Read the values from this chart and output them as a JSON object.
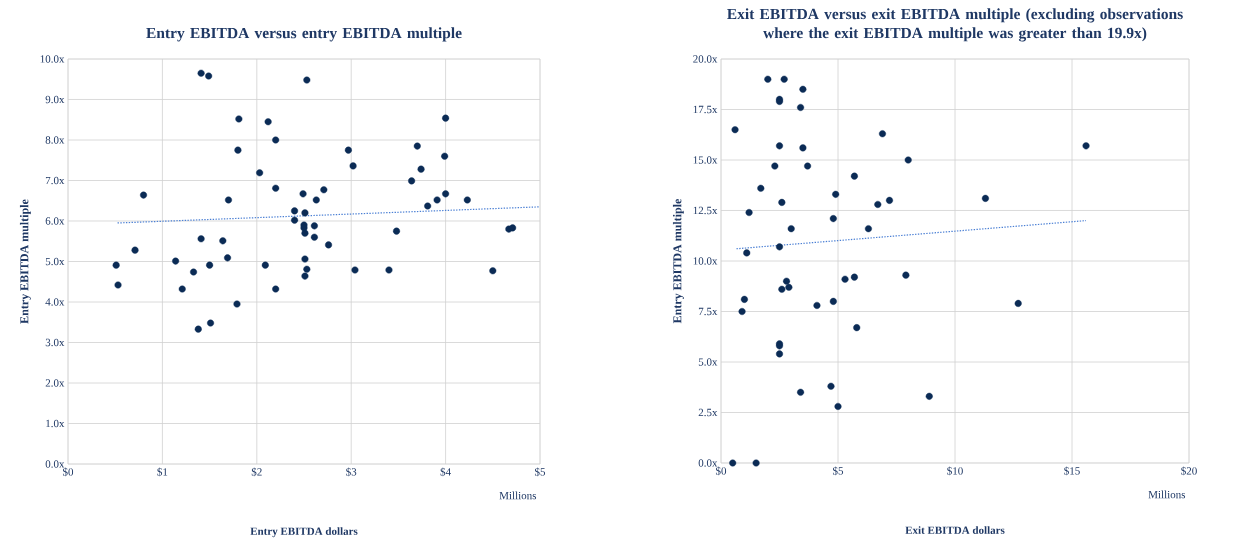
{
  "chart_data": [
    {
      "type": "scatter",
      "title": "Entry EBITDA versus entry EBITDA multiple",
      "xlabel": "Entry EBITDA dollars",
      "ylabel": "Entry EBITDA multiple",
      "annotations": [
        "Millions"
      ],
      "xlim": [
        0,
        5
      ],
      "ylim": [
        0,
        10
      ],
      "xticks": [
        {
          "value": 0,
          "label": "$0"
        },
        {
          "value": 1,
          "label": "$1"
        },
        {
          "value": 2,
          "label": "$2"
        },
        {
          "value": 3,
          "label": "$3"
        },
        {
          "value": 4,
          "label": "$4"
        },
        {
          "value": 5,
          "label": "$5"
        }
      ],
      "yticks": [
        {
          "value": 0,
          "label": "0.0x"
        },
        {
          "value": 1,
          "label": "1.0x"
        },
        {
          "value": 2,
          "label": "2.0x"
        },
        {
          "value": 3,
          "label": "3.0x"
        },
        {
          "value": 4,
          "label": "4.0x"
        },
        {
          "value": 5,
          "label": "5.0x"
        },
        {
          "value": 6,
          "label": "6.0x"
        },
        {
          "value": 7,
          "label": "7.0x"
        },
        {
          "value": 8,
          "label": "8.0x"
        },
        {
          "value": 9,
          "label": "9.0x"
        },
        {
          "value": 10,
          "label": "10.0x"
        }
      ],
      "grid": true,
      "marker": "circle",
      "series": [
        {
          "color": "#0b2b55",
          "x": [
            0.51,
            0.53,
            0.71,
            0.8,
            1.14,
            1.21,
            1.33,
            1.38,
            1.41,
            1.41,
            1.49,
            1.51,
            1.5,
            1.64,
            1.69,
            1.7,
            1.79,
            1.8,
            1.81,
            2.03,
            2.09,
            2.12,
            2.2,
            2.2,
            2.2,
            2.4,
            2.4,
            2.49,
            2.51,
            2.5,
            2.5,
            2.51,
            2.51,
            2.53,
            2.51,
            2.53,
            2.61,
            2.61,
            2.63,
            2.71,
            2.76,
            2.97,
            3.02,
            3.04,
            3.4,
            3.48,
            3.64,
            3.7,
            3.74,
            3.81,
            3.91,
            3.99,
            4.0,
            4.0,
            4.23,
            4.5,
            4.67,
            4.71
          ],
          "values": [
            4.91,
            4.42,
            5.28,
            6.64,
            5.01,
            4.32,
            4.74,
            3.33,
            5.56,
            9.65,
            9.58,
            3.48,
            4.91,
            5.51,
            5.09,
            6.52,
            3.95,
            7.75,
            8.52,
            7.19,
            4.91,
            8.45,
            8.0,
            6.81,
            4.32,
            6.25,
            6.02,
            6.67,
            6.2,
            5.9,
            5.83,
            5.7,
            5.06,
            4.81,
            4.64,
            9.48,
            5.88,
            5.6,
            6.52,
            6.77,
            5.41,
            7.75,
            7.36,
            4.79,
            4.79,
            5.75,
            6.99,
            7.85,
            7.28,
            6.37,
            6.52,
            7.6,
            8.54,
            6.67,
            6.52,
            4.77,
            5.8,
            5.83
          ]
        },
        {
          "type": "line",
          "color": "#4a7fd4",
          "line_style": "dotted",
          "marker": "none",
          "x": [
            0.51,
            5.0
          ],
          "values": [
            5.95,
            6.35
          ]
        }
      ]
    },
    {
      "type": "scatter",
      "title": "Exit EBITDA versus exit EBITDA multiple (excluding observations where the exit EBITDA multiple was greater than 19.9x)",
      "xlabel": "Exit EBITDA dollars",
      "ylabel": "Entry EBITDA multiple",
      "annotations": [
        "Millions"
      ],
      "xlim": [
        0,
        20
      ],
      "ylim": [
        0,
        20
      ],
      "xticks": [
        {
          "value": 0,
          "label": "$0"
        },
        {
          "value": 5,
          "label": "$5"
        },
        {
          "value": 10,
          "label": "$10"
        },
        {
          "value": 15,
          "label": "$15"
        },
        {
          "value": 20,
          "label": "$20"
        }
      ],
      "yticks": [
        {
          "value": 0,
          "label": "0.0x"
        },
        {
          "value": 2.5,
          "label": "2.5x"
        },
        {
          "value": 5,
          "label": "5.0x"
        },
        {
          "value": 7.5,
          "label": "7.5x"
        },
        {
          "value": 10,
          "label": "10.0x"
        },
        {
          "value": 12.5,
          "label": "12.5x"
        },
        {
          "value": 15,
          "label": "15.0x"
        },
        {
          "value": 17.5,
          "label": "17.5x"
        },
        {
          "value": 20,
          "label": "20.0x"
        }
      ],
      "grid": true,
      "marker": "circle",
      "series": [
        {
          "color": "#0b2b55",
          "x": [
            2.0,
            2.7,
            3.5,
            2.5,
            2.5,
            3.4,
            0.6,
            6.9,
            2.5,
            3.5,
            8.0,
            2.3,
            3.7,
            5.7,
            1.7,
            4.9,
            2.6,
            6.7,
            7.2,
            1.2,
            4.8,
            6.3,
            3.0,
            2.5,
            1.1,
            5.3,
            5.7,
            7.9,
            2.8,
            2.9,
            2.6,
            1.0,
            4.8,
            4.1,
            0.9,
            5.8,
            2.5,
            2.5,
            2.5,
            4.7,
            3.4,
            5.0,
            8.9,
            0.5,
            1.5,
            15.6,
            11.3,
            12.7
          ],
          "values": [
            19.0,
            19.0,
            18.5,
            18.0,
            17.9,
            17.6,
            16.5,
            16.3,
            15.7,
            15.6,
            15.0,
            14.7,
            14.7,
            14.2,
            13.6,
            13.3,
            12.9,
            12.8,
            13.0,
            12.4,
            12.1,
            11.6,
            11.6,
            10.7,
            10.4,
            9.1,
            9.2,
            9.3,
            9.0,
            8.7,
            8.6,
            8.1,
            8.0,
            7.8,
            7.5,
            6.7,
            5.9,
            5.8,
            5.4,
            3.8,
            3.5,
            2.8,
            3.3,
            0,
            0,
            15.7,
            13.1,
            7.9
          ]
        },
        {
          "type": "line",
          "color": "#4a7fd4",
          "line_style": "dotted",
          "marker": "none",
          "x": [
            0.6,
            15.6
          ],
          "values": [
            10.6,
            12.0
          ]
        }
      ]
    }
  ]
}
